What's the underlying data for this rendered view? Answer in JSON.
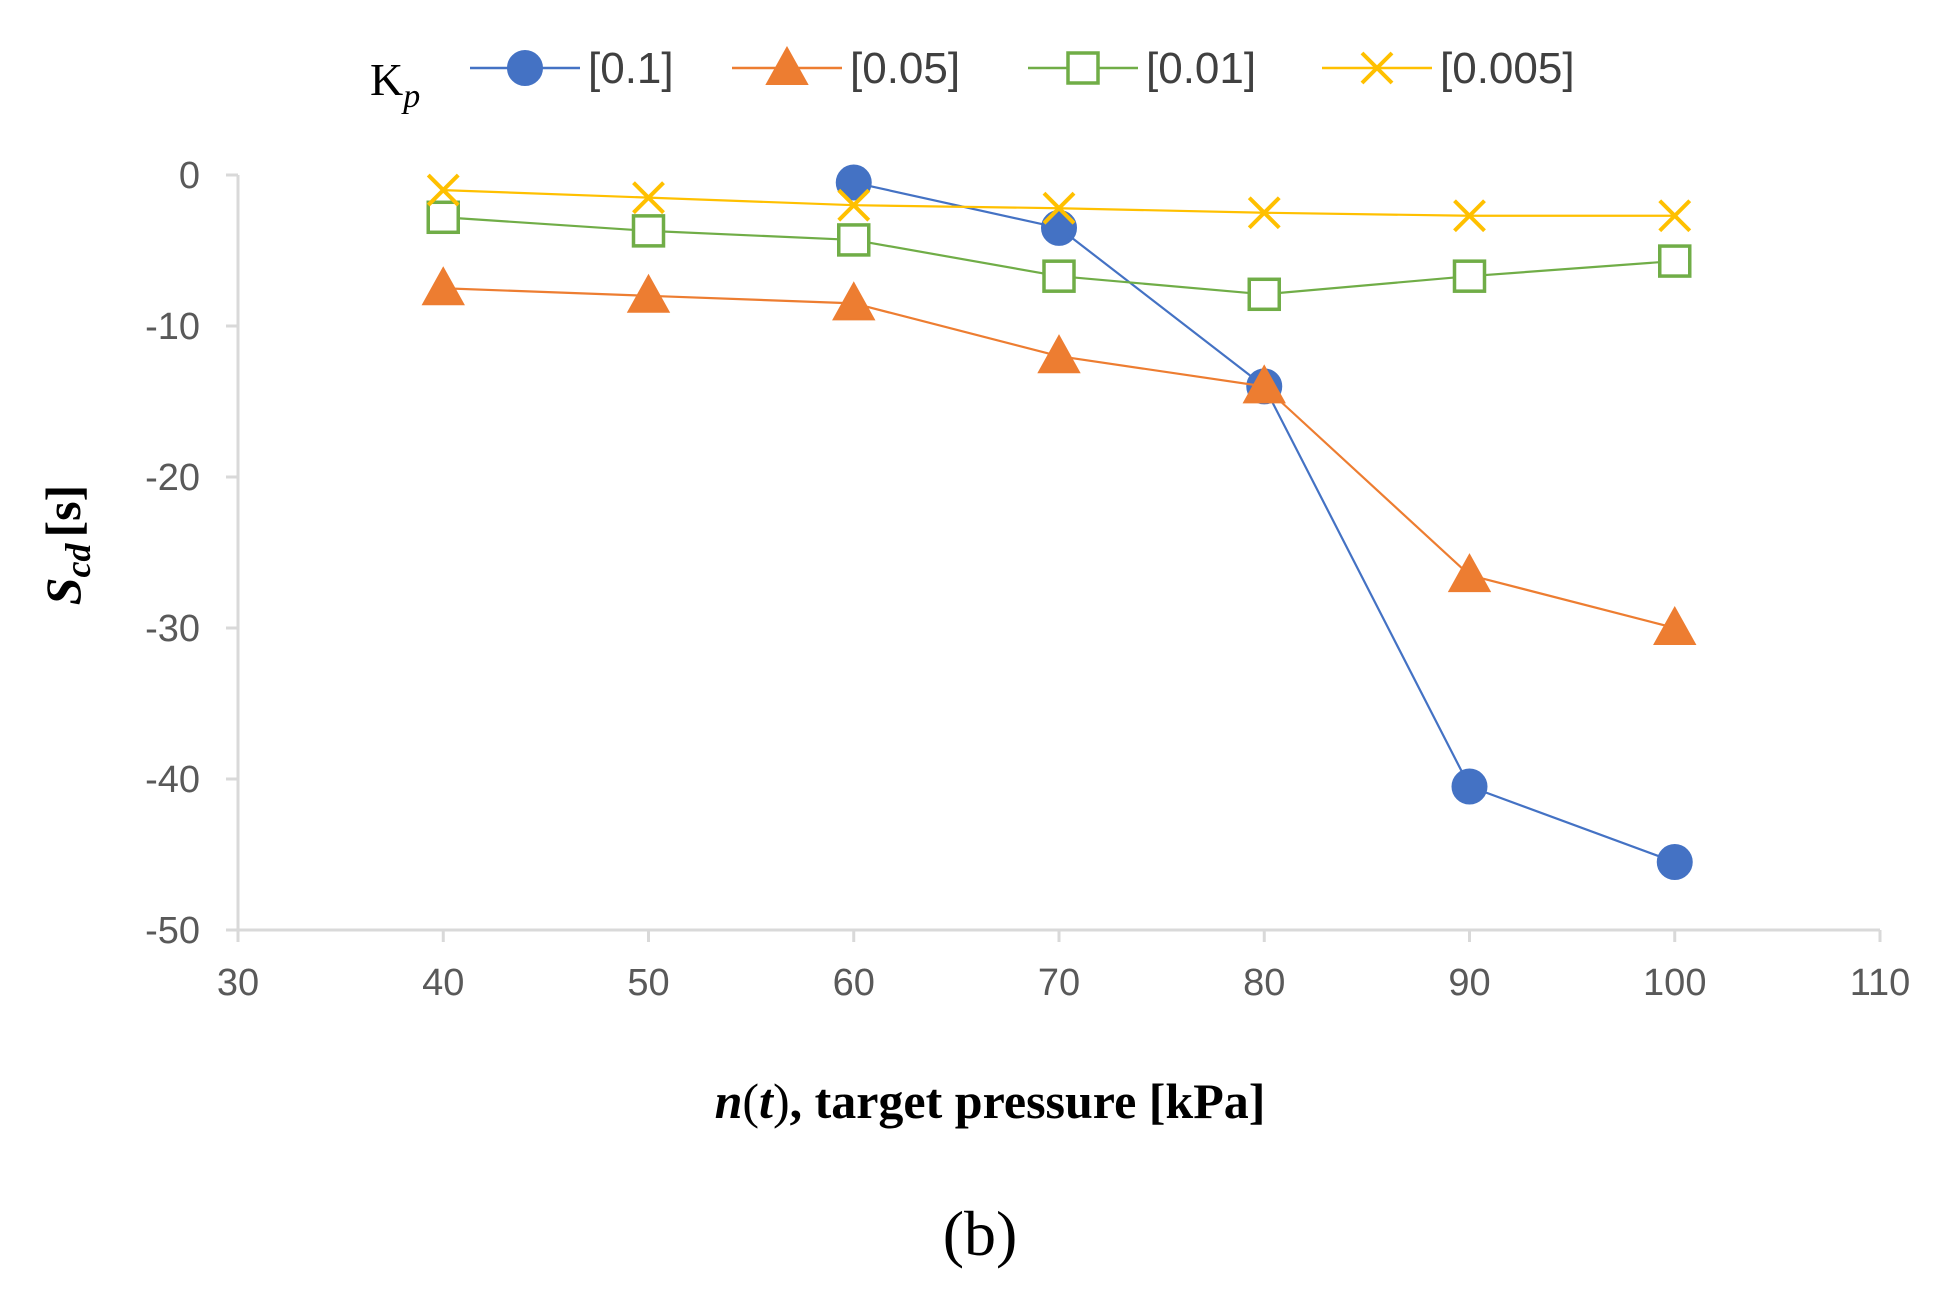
{
  "chart_data": {
    "type": "line",
    "x": [
      40,
      50,
      60,
      70,
      80,
      90,
      100
    ],
    "xlim": [
      30,
      110
    ],
    "ylim": [
      -50,
      0
    ],
    "xticks": [
      "30",
      "40",
      "50",
      "60",
      "70",
      "80",
      "90",
      "100",
      "110"
    ],
    "yticks": [
      "0",
      "-10",
      "-20",
      "-30",
      "-40",
      "-50"
    ],
    "legend_title": {
      "base": "K",
      "sub": "p"
    },
    "legend_position": "top",
    "xlabel": {
      "n": "n",
      "t": "t",
      "open": "(",
      "close": ")",
      "rest": ", target pressure [kPa]"
    },
    "ylabel": {
      "s": "S",
      "sub": "cd",
      "rest": "[s]"
    },
    "panel_label": "(b)",
    "series": [
      {
        "name": "[0.1]",
        "color": "#4472C4",
        "marker": "circle",
        "values": [
          null,
          null,
          -0.5,
          -3.5,
          -14,
          -40.5,
          -45.5
        ]
      },
      {
        "name": "[0.05]",
        "color": "#ED7D31",
        "marker": "triangle",
        "values": [
          -7.5,
          -8,
          -8.5,
          -12,
          -14,
          -26.5,
          -30
        ]
      },
      {
        "name": "[0.01]",
        "color": "#70AD47",
        "marker": "square",
        "values": [
          -2.8,
          -3.7,
          -4.3,
          -6.7,
          -7.9,
          -6.7,
          -5.7
        ]
      },
      {
        "name": "[0.005]",
        "color": "#FFC000",
        "marker": "x",
        "values": [
          -1.0,
          -1.5,
          -2.0,
          -2.2,
          -2.5,
          -2.7,
          -2.7
        ]
      }
    ]
  }
}
